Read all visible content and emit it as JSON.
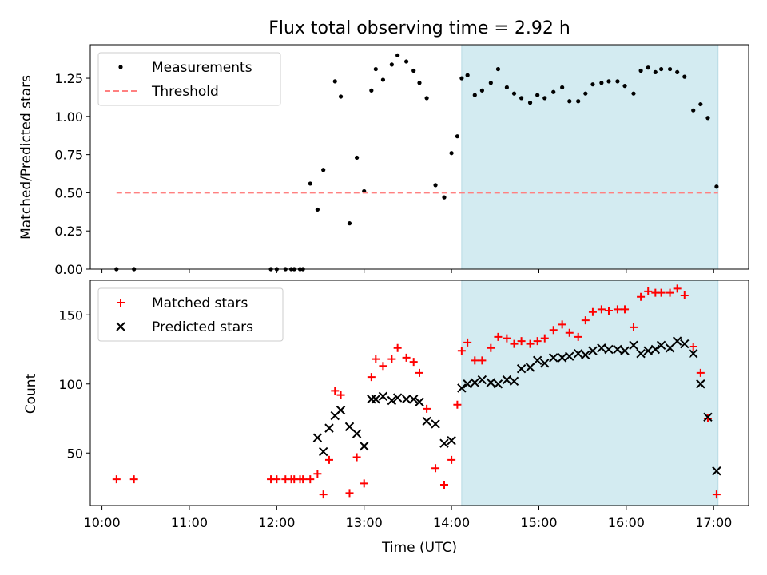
{
  "title": "Flux total observing time = 2.92 h",
  "chart_data": [
    {
      "type": "scatter",
      "ylabel": "Matched/Predicted stars",
      "xlabel": "",
      "xlim": [
        "09:52",
        "17:24"
      ],
      "ylim": [
        0,
        1.47
      ],
      "yticks": [
        0,
        0.25,
        0.5,
        0.75,
        1.0,
        1.25
      ],
      "ytick_labels": [
        "0.00",
        "0.25",
        "0.50",
        "0.75",
        "1.00",
        "1.25"
      ],
      "legend_position": "upper-left",
      "shaded_span": {
        "start": "14:07",
        "end": "17:03",
        "color": "#d3ebf1"
      },
      "series": [
        {
          "name": "Measurements",
          "marker": "dot",
          "color": "#000000",
          "x": [
            "10:10",
            "10:22",
            "11:56",
            "12:00",
            "12:06",
            "12:10",
            "12:12",
            "12:16",
            "12:18",
            "12:23",
            "12:28",
            "12:32",
            "12:40",
            "12:44",
            "12:50",
            "12:55",
            "13:00",
            "13:05",
            "13:08",
            "13:13",
            "13:19",
            "13:23",
            "13:29",
            "13:34",
            "13:38",
            "13:43",
            "13:49",
            "13:55",
            "14:00",
            "14:04",
            "14:07",
            "14:11",
            "14:16",
            "14:21",
            "14:27",
            "14:32",
            "14:38",
            "14:43",
            "14:48",
            "14:54",
            "14:59",
            "15:04",
            "15:10",
            "15:16",
            "15:21",
            "15:27",
            "15:32",
            "15:37",
            "15:43",
            "15:48",
            "15:54",
            "15:59",
            "16:05",
            "16:10",
            "16:15",
            "16:20",
            "16:24",
            "16:30",
            "16:35",
            "16:40",
            "16:46",
            "16:51",
            "16:56",
            "17:02"
          ],
          "values": [
            0.0,
            0.0,
            0.0,
            0.0,
            0.0,
            0.0,
            0.0,
            0.0,
            0.0,
            0.56,
            0.39,
            0.65,
            1.23,
            1.13,
            0.3,
            0.73,
            0.51,
            1.17,
            1.31,
            1.24,
            1.34,
            1.4,
            1.36,
            1.3,
            1.22,
            1.12,
            0.55,
            0.47,
            0.76,
            0.87,
            1.25,
            1.27,
            1.14,
            1.17,
            1.22,
            1.31,
            1.19,
            1.15,
            1.12,
            1.09,
            1.14,
            1.12,
            1.16,
            1.19,
            1.1,
            1.1,
            1.15,
            1.21,
            1.22,
            1.23,
            1.23,
            1.2,
            1.15,
            1.3,
            1.32,
            1.29,
            1.31,
            1.31,
            1.29,
            1.26,
            1.04,
            1.08,
            0.99,
            0.54
          ]
        },
        {
          "name": "Threshold",
          "marker": "dashed-line",
          "color": "#ff8080",
          "x": [
            "10:10",
            "17:03"
          ],
          "values": [
            0.5,
            0.5
          ]
        }
      ]
    },
    {
      "type": "scatter",
      "ylabel": "Count",
      "xlabel": "Time (UTC)",
      "xlim": [
        "09:52",
        "17:24"
      ],
      "ylim": [
        12,
        175
      ],
      "yticks": [
        50,
        100,
        150
      ],
      "ytick_labels": [
        "50",
        "100",
        "150"
      ],
      "xticks": [
        "10:00",
        "11:00",
        "12:00",
        "13:00",
        "14:00",
        "15:00",
        "16:00",
        "17:00"
      ],
      "legend_position": "upper-left",
      "shaded_span": {
        "start": "14:07",
        "end": "17:03",
        "color": "#d3ebf1"
      },
      "series": [
        {
          "name": "Matched stars",
          "marker": "plus",
          "color": "#ff0000",
          "x": [
            "10:10",
            "10:22",
            "11:56",
            "12:00",
            "12:06",
            "12:10",
            "12:12",
            "12:16",
            "12:18",
            "12:23",
            "12:28",
            "12:32",
            "12:36",
            "12:40",
            "12:44",
            "12:50",
            "12:55",
            "13:00",
            "13:05",
            "13:08",
            "13:13",
            "13:19",
            "13:23",
            "13:29",
            "13:34",
            "13:38",
            "13:43",
            "13:49",
            "13:55",
            "14:00",
            "14:04",
            "14:07",
            "14:11",
            "14:16",
            "14:21",
            "14:27",
            "14:32",
            "14:38",
            "14:43",
            "14:48",
            "14:54",
            "14:59",
            "15:04",
            "15:10",
            "15:16",
            "15:21",
            "15:27",
            "15:32",
            "15:37",
            "15:43",
            "15:48",
            "15:54",
            "15:59",
            "16:05",
            "16:10",
            "16:15",
            "16:20",
            "16:24",
            "16:30",
            "16:35",
            "16:40",
            "16:46",
            "16:51",
            "16:56",
            "17:02"
          ],
          "values": [
            31,
            31,
            31,
            31,
            31,
            31,
            31,
            31,
            31,
            31,
            35,
            20,
            45,
            95,
            92,
            21,
            47,
            28,
            105,
            118,
            113,
            118,
            126,
            119,
            116,
            108,
            82,
            39,
            27,
            45,
            85,
            124,
            130,
            117,
            117,
            126,
            134,
            133,
            129,
            131,
            129,
            131,
            133,
            139,
            143,
            137,
            134,
            146,
            152,
            154,
            153,
            154,
            154,
            141,
            163,
            167,
            166,
            166,
            166,
            169,
            164,
            127,
            108,
            75,
            20
          ]
        },
        {
          "name": "Predicted stars",
          "marker": "x",
          "color": "#000000",
          "x": [
            "10:10",
            "10:22",
            "11:56",
            "12:00",
            "12:06",
            "12:10",
            "12:12",
            "12:16",
            "12:18",
            "12:23",
            "12:28",
            "12:32",
            "12:36",
            "12:40",
            "12:44",
            "12:50",
            "12:55",
            "13:00",
            "13:05",
            "13:08",
            "13:13",
            "13:19",
            "13:23",
            "13:29",
            "13:34",
            "13:38",
            "13:43",
            "13:49",
            "13:55",
            "14:00",
            "14:04",
            "14:07",
            "14:11",
            "14:16",
            "14:21",
            "14:27",
            "14:32",
            "14:38",
            "14:43",
            "14:48",
            "14:54",
            "14:59",
            "15:04",
            "15:10",
            "15:16",
            "15:21",
            "15:27",
            "15:32",
            "15:37",
            "15:43",
            "15:48",
            "15:54",
            "15:59",
            "16:05",
            "16:10",
            "16:15",
            "16:20",
            "16:24",
            "16:30",
            "16:35",
            "16:40",
            "16:46",
            "16:51",
            "16:56",
            "17:02"
          ],
          "values": [
            null,
            null,
            null,
            null,
            null,
            null,
            null,
            null,
            null,
            null,
            61,
            51,
            68,
            77,
            81,
            69,
            64,
            55,
            89,
            89,
            91,
            88,
            90,
            89,
            89,
            87,
            73,
            71,
            57,
            59,
            null,
            97,
            100,
            101,
            103,
            101,
            100,
            103,
            102,
            111,
            112,
            117,
            115,
            119,
            119,
            120,
            122,
            121,
            124,
            126,
            125,
            125,
            124,
            128,
            122,
            124,
            125,
            128,
            126,
            131,
            129,
            122,
            100,
            76,
            37
          ]
        }
      ]
    }
  ]
}
